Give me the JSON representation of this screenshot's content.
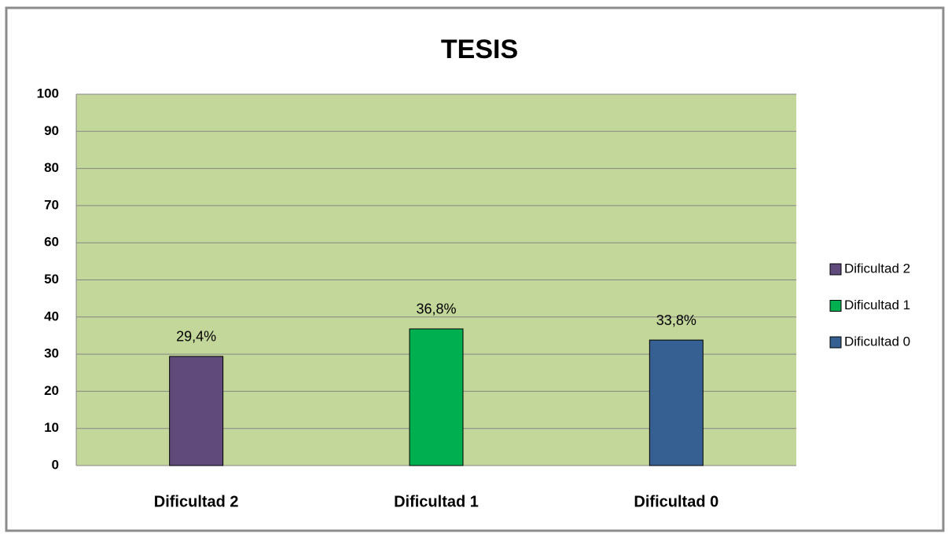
{
  "chart_data": {
    "type": "bar",
    "title": "TESIS",
    "categories": [
      "Dificultad 2",
      "Dificultad 1",
      "Dificultad 0"
    ],
    "values": [
      29.4,
      36.8,
      33.8
    ],
    "value_labels": [
      "29,4%",
      "36,8%",
      "33,8%"
    ],
    "colors": [
      "#604a7b",
      "#00b050",
      "#376092"
    ],
    "ylim": [
      0,
      100
    ],
    "yticks": [
      0,
      10,
      20,
      30,
      40,
      50,
      60,
      70,
      80,
      90,
      100
    ],
    "grid": true,
    "legend": "right"
  }
}
